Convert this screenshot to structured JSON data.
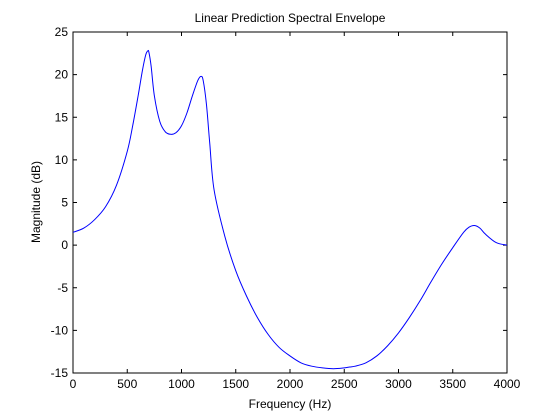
{
  "chart_data": {
    "type": "line",
    "title": "Linear Prediction Spectral Envelope",
    "xlabel": "Frequency (Hz)",
    "ylabel": "Magnitude (dB)",
    "xlim": [
      0,
      4000
    ],
    "ylim": [
      -15,
      25
    ],
    "xticks": [
      0,
      500,
      1000,
      1500,
      2000,
      2500,
      3000,
      3500,
      4000
    ],
    "yticks": [
      -15,
      -10,
      -5,
      0,
      5,
      10,
      15,
      20,
      25
    ],
    "grid": false,
    "legend": "none",
    "series": [
      {
        "color": "#0000ff",
        "x": [
          0,
          100,
          200,
          300,
          400,
          500,
          550,
          600,
          640,
          670,
          690,
          700,
          720,
          750,
          800,
          850,
          900,
          950,
          1000,
          1050,
          1100,
          1150,
          1180,
          1200,
          1230,
          1260,
          1300,
          1400,
          1500,
          1600,
          1700,
          1800,
          1900,
          2000,
          2100,
          2200,
          2300,
          2400,
          2500,
          2550,
          2600,
          2700,
          2800,
          2900,
          3000,
          3100,
          3200,
          3300,
          3400,
          3500,
          3600,
          3650,
          3700,
          3750,
          3800,
          3900,
          4000
        ],
        "y": [
          1.5,
          2.0,
          3.0,
          4.5,
          7.0,
          11.0,
          14.0,
          17.5,
          20.5,
          22.3,
          22.8,
          22.6,
          21.0,
          17.5,
          14.5,
          13.3,
          13.0,
          13.2,
          14.0,
          15.5,
          17.5,
          19.3,
          19.8,
          19.3,
          16.5,
          12.0,
          6.5,
          1.0,
          -3.0,
          -6.0,
          -8.5,
          -10.5,
          -12.0,
          -13.0,
          -13.8,
          -14.2,
          -14.4,
          -14.5,
          -14.4,
          -14.3,
          -14.2,
          -13.8,
          -13.0,
          -11.8,
          -10.3,
          -8.5,
          -6.5,
          -4.3,
          -2.2,
          -0.3,
          1.5,
          2.1,
          2.3,
          2.0,
          1.3,
          0.3,
          0.0
        ]
      }
    ]
  }
}
